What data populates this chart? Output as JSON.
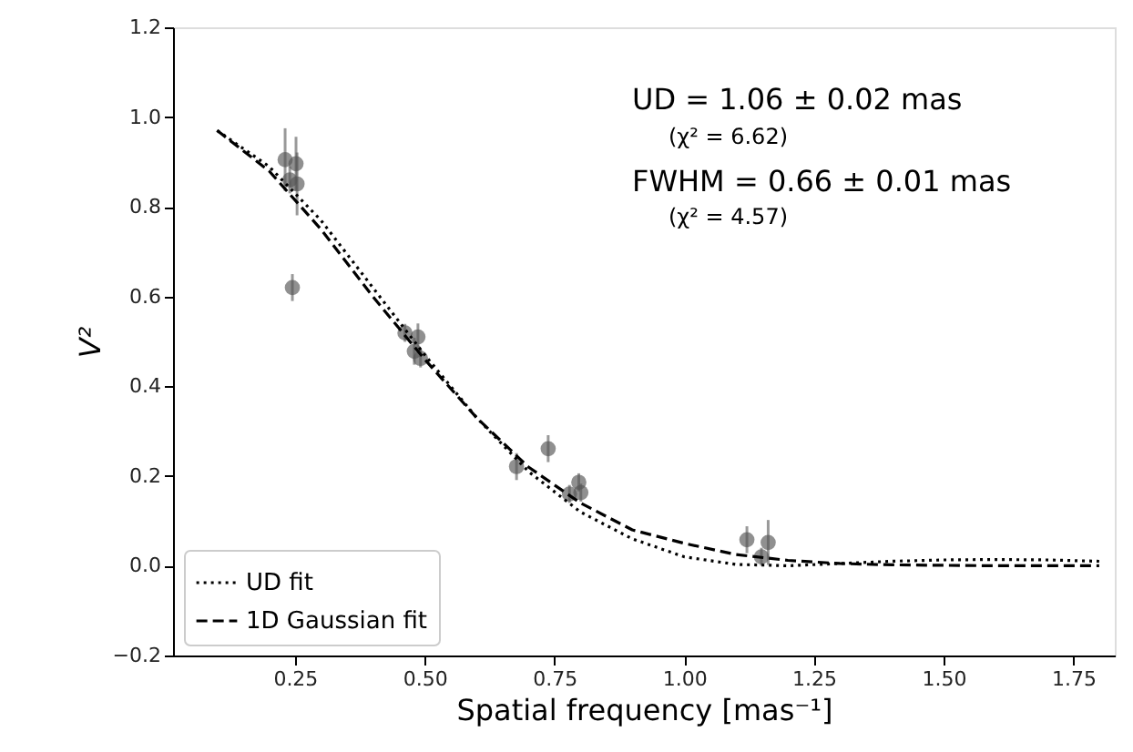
{
  "chart_data": {
    "type": "scatter",
    "xlabel": "Spatial frequency [mas⁻¹]",
    "ylabel": "V²",
    "xlim": [
      0.015,
      1.83
    ],
    "ylim": [
      -0.2,
      1.2
    ],
    "xticks": [
      {
        "value": 0.25,
        "label": "0.25"
      },
      {
        "value": 0.5,
        "label": "0.50"
      },
      {
        "value": 0.75,
        "label": "0.75"
      },
      {
        "value": 1.0,
        "label": "1.00"
      },
      {
        "value": 1.25,
        "label": "1.25"
      },
      {
        "value": 1.5,
        "label": "1.50"
      },
      {
        "value": 1.75,
        "label": "1.75"
      }
    ],
    "yticks": [
      {
        "value": -0.2,
        "label": "−0.2"
      },
      {
        "value": 0.0,
        "label": "0.0"
      },
      {
        "value": 0.2,
        "label": "0.2"
      },
      {
        "value": 0.4,
        "label": "0.4"
      },
      {
        "value": 0.6,
        "label": "0.6"
      },
      {
        "value": 0.8,
        "label": "0.8"
      },
      {
        "value": 1.0,
        "label": "1.0"
      },
      {
        "value": 1.2,
        "label": "1.2"
      }
    ],
    "annotations": [
      "UD = 1.06 ± 0.02 mas",
      "(χ² = 6.62)",
      "FWHM = 0.66 ± 0.01 mas",
      "(χ² = 4.57)"
    ],
    "legend": "bottom left",
    "grid": false,
    "series": [
      {
        "type": "scatter",
        "color": "#555555",
        "marker": "circle",
        "x": [
          0.231,
          0.24,
          0.252,
          0.254,
          0.245,
          0.462,
          0.487,
          0.48,
          0.492,
          0.677,
          0.738,
          0.779,
          0.797,
          0.801,
          1.121,
          1.162,
          1.149
        ],
        "values": [
          0.905,
          0.86,
          0.896,
          0.851,
          0.62,
          0.519,
          0.51,
          0.478,
          0.462,
          0.221,
          0.261,
          0.16,
          0.186,
          0.163,
          0.058,
          0.052,
          0.02
        ],
        "errors": [
          0.07,
          0.03,
          0.06,
          0.07,
          0.03,
          0.02,
          0.03,
          0.03,
          0.02,
          0.03,
          0.03,
          0.02,
          0.02,
          0.02,
          0.03,
          0.05,
          0.02
        ]
      },
      {
        "type": "line",
        "name": "UD fit",
        "color": "#000000",
        "line_style": "dotted",
        "x": [
          0.1,
          0.2,
          0.3,
          0.4,
          0.5,
          0.6,
          0.7,
          0.8,
          0.9,
          1.0,
          1.1,
          1.2,
          1.3,
          1.4,
          1.5,
          1.6,
          1.7,
          1.8
        ],
        "values": [
          0.97,
          0.89,
          0.77,
          0.62,
          0.47,
          0.33,
          0.21,
          0.12,
          0.06,
          0.02,
          0.003,
          0.0,
          0.005,
          0.01,
          0.013,
          0.014,
          0.013,
          0.01
        ]
      },
      {
        "type": "line",
        "name": "1D Gaussian fit",
        "color": "#000000",
        "line_style": "dashed",
        "x": [
          0.1,
          0.2,
          0.3,
          0.4,
          0.5,
          0.6,
          0.7,
          0.8,
          0.9,
          1.0,
          1.1,
          1.2,
          1.3,
          1.4,
          1.5,
          1.6,
          1.7,
          1.8
        ],
        "values": [
          0.97,
          0.88,
          0.75,
          0.6,
          0.46,
          0.33,
          0.22,
          0.14,
          0.08,
          0.05,
          0.025,
          0.012,
          0.005,
          0.002,
          0.001,
          0.0,
          0.0,
          0.0
        ]
      }
    ]
  }
}
